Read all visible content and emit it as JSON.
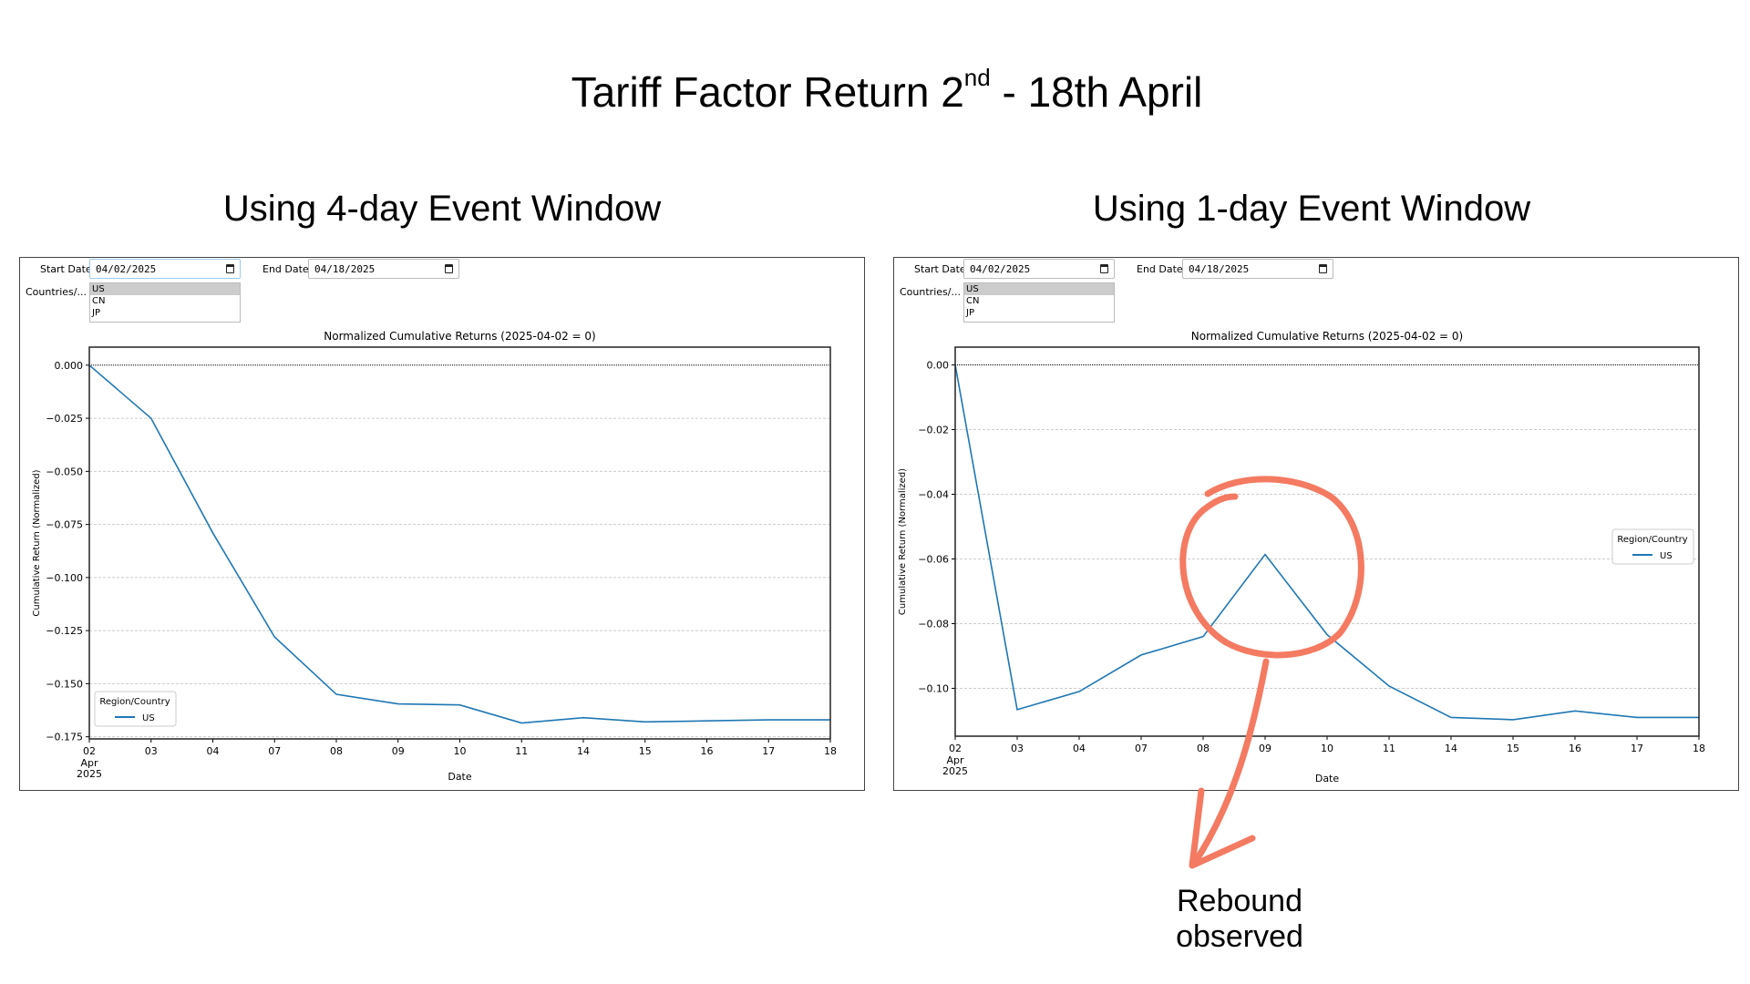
{
  "slide": {
    "title_main": "Tariff Factor Return 2",
    "title_sup": "nd",
    "title_rest": " - 18th April",
    "annotation": "Rebound observed",
    "annotation_color": "#f47a62"
  },
  "panels": [
    {
      "subtitle": "Using 4-day Event Window",
      "start_label": "Start Date",
      "start_value": "04/02/2025",
      "end_label": "End Date",
      "end_value": "04/18/2025",
      "countries_label": "Countries/...",
      "countries": [
        "US",
        "CN",
        "JP"
      ],
      "selected_country": "US"
    },
    {
      "subtitle": "Using 1-day Event Window",
      "start_label": "Start Date",
      "start_value": "04/02/2025",
      "end_label": "End Date",
      "end_value": "04/18/2025",
      "countries_label": "Countries/...",
      "countries": [
        "US",
        "CN",
        "JP"
      ],
      "selected_country": "US"
    }
  ],
  "chart_data": [
    {
      "type": "line",
      "title": "Normalized Cumulative Returns (2025-04-02 = 0)",
      "xlabel": "Date",
      "ylabel": "Cumulative Return (Normalized)",
      "categories": [
        "02",
        "03",
        "04",
        "07",
        "08",
        "09",
        "10",
        "11",
        "14",
        "15",
        "16",
        "17",
        "18"
      ],
      "x_sublabel": [
        "Apr",
        "2025"
      ],
      "yticks": [
        "0.000",
        "−0.025",
        "−0.050",
        "−0.075",
        "−0.100",
        "−0.125",
        "−0.150",
        "−0.175"
      ],
      "ytick_values": [
        0,
        -0.025,
        -0.05,
        -0.075,
        -0.1,
        -0.125,
        -0.15,
        -0.175
      ],
      "ylim": [
        -0.176,
        0.0085
      ],
      "grid": true,
      "zero_line": true,
      "legend_title": "Region/Country",
      "legend_position": "lower-left",
      "series": [
        {
          "name": "US",
          "color": "#1f77b4",
          "values": [
            0,
            -0.025,
            -0.079,
            -0.128,
            -0.155,
            -0.1595,
            -0.16,
            -0.1685,
            -0.166,
            -0.168,
            -0.1675,
            -0.167,
            -0.167
          ]
        }
      ]
    },
    {
      "type": "line",
      "title": "Normalized Cumulative Returns (2025-04-02 = 0)",
      "xlabel": "Date",
      "ylabel": "Cumulative Return (Normalized)",
      "categories": [
        "02",
        "03",
        "04",
        "07",
        "08",
        "09",
        "10",
        "11",
        "14",
        "15",
        "16",
        "17",
        "18"
      ],
      "x_sublabel": [
        "Apr",
        "2025"
      ],
      "yticks": [
        "0.00",
        "−0.02",
        "−0.04",
        "−0.06",
        "−0.08",
        "−0.10"
      ],
      "ytick_values": [
        0,
        -0.02,
        -0.04,
        -0.06,
        -0.08,
        -0.1
      ],
      "ylim": [
        -0.1148,
        0.0055
      ],
      "grid": true,
      "zero_line": true,
      "legend_title": "Region/Country",
      "legend_position": "center-right",
      "series": [
        {
          "name": "US",
          "color": "#1f77b4",
          "values": [
            0,
            -0.1066,
            -0.101,
            -0.0897,
            -0.084,
            -0.0586,
            -0.0834,
            -0.0993,
            -0.109,
            -0.1097,
            -0.107,
            -0.109,
            -0.109
          ]
        }
      ]
    }
  ]
}
